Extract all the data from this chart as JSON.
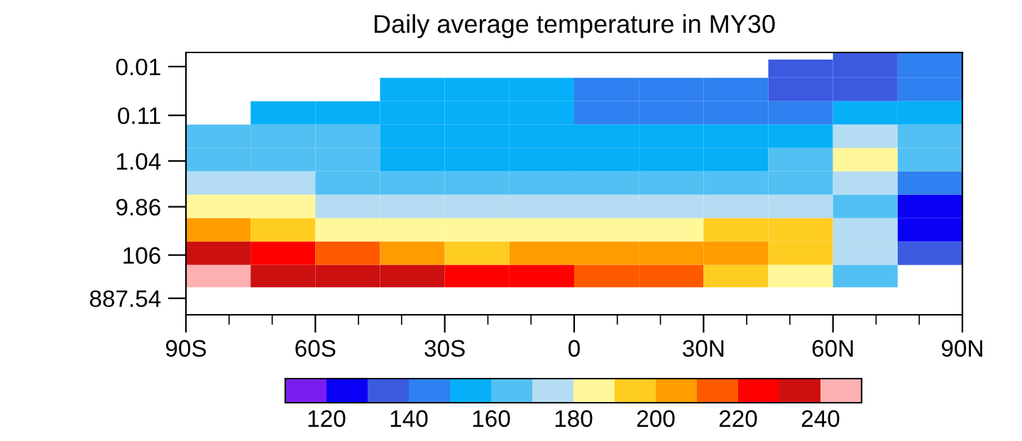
{
  "chart_data": {
    "type": "heatmap",
    "title": "Daily average temperature in MY30",
    "x": [
      -82.5,
      -67.5,
      -52.5,
      -37.5,
      -22.5,
      -7.5,
      7.5,
      22.5,
      37.5,
      52.5,
      67.5,
      82.5
    ],
    "y": [
      0.005,
      0.01,
      0.03,
      0.1,
      0.3,
      1,
      3,
      10,
      30,
      100,
      300
    ],
    "cells": [
      [
        null,
        null,
        null,
        null,
        null,
        null,
        null,
        null,
        null,
        null,
        135,
        145
      ],
      [
        null,
        null,
        null,
        null,
        null,
        null,
        null,
        null,
        null,
        135,
        135,
        145
      ],
      [
        null,
        null,
        null,
        155,
        155,
        155,
        145,
        145,
        145,
        135,
        135,
        145
      ],
      [
        null,
        155,
        155,
        155,
        155,
        155,
        145,
        145,
        145,
        145,
        155,
        155
      ],
      [
        165,
        165,
        165,
        155,
        155,
        155,
        155,
        155,
        155,
        155,
        175,
        165
      ],
      [
        165,
        165,
        165,
        155,
        155,
        155,
        155,
        155,
        155,
        165,
        185,
        165
      ],
      [
        175,
        175,
        165,
        165,
        165,
        165,
        165,
        165,
        165,
        165,
        175,
        145
      ],
      [
        185,
        185,
        175,
        175,
        175,
        175,
        175,
        175,
        175,
        175,
        165,
        125
      ],
      [
        205,
        195,
        185,
        185,
        185,
        185,
        185,
        185,
        195,
        195,
        175,
        125
      ],
      [
        235,
        225,
        215,
        205,
        195,
        205,
        205,
        205,
        205,
        195,
        175,
        135
      ],
      [
        245,
        235,
        235,
        235,
        225,
        225,
        215,
        215,
        195,
        185,
        165,
        null
      ]
    ],
    "xlim": [
      -90,
      90
    ],
    "xticks": [
      {
        "value": -90,
        "label": "90S"
      },
      {
        "value": -80,
        "label": null
      },
      {
        "value": -70,
        "label": null
      },
      {
        "value": -60,
        "label": "60S"
      },
      {
        "value": -50,
        "label": null
      },
      {
        "value": -40,
        "label": null
      },
      {
        "value": -30,
        "label": "30S"
      },
      {
        "value": -20,
        "label": null
      },
      {
        "value": -10,
        "label": null
      },
      {
        "value": 0,
        "label": "0"
      },
      {
        "value": 10,
        "label": null
      },
      {
        "value": 20,
        "label": null
      },
      {
        "value": 30,
        "label": "30N"
      },
      {
        "value": 40,
        "label": null
      },
      {
        "value": 50,
        "label": null
      },
      {
        "value": 60,
        "label": "60N"
      },
      {
        "value": 70,
        "label": null
      },
      {
        "value": 80,
        "label": null
      },
      {
        "value": 90,
        "label": "90N"
      }
    ],
    "log": "y",
    "ylim": [
      2000,
      0.005
    ],
    "yticks": [
      0.01,
      0.11,
      1.04,
      9.86,
      106,
      887.54
    ],
    "clim": [
      110,
      250
    ],
    "cticks": [
      120,
      140,
      160,
      180,
      200,
      220,
      240
    ],
    "colors": [
      "#7a1ef0",
      "#0a00f5",
      "#3c5ae0",
      "#2f80f0",
      "#06aff7",
      "#52c0f2",
      "#b4dcf2",
      "#fff799",
      "#ffcc22",
      "#ff9c00",
      "#ff5a00",
      "#ff0000",
      "#cc1010",
      "#ffb0b0"
    ]
  }
}
